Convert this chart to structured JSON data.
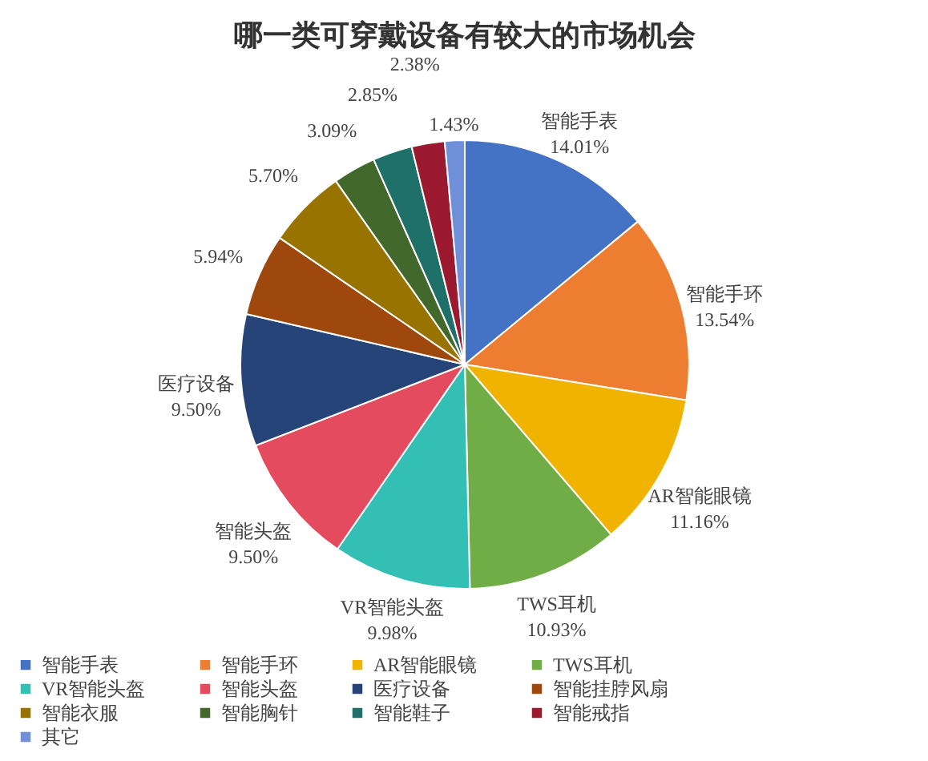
{
  "chart_data": {
    "type": "pie",
    "title": "哪一类可穿戴设备有较大的市场机会",
    "categories": [
      "智能手表",
      "智能手环",
      "AR智能眼镜",
      "TWS耳机",
      "VR智能头盔",
      "智能头盔",
      "医疗设备",
      "智能挂脖风扇",
      "智能衣服",
      "智能胸针",
      "智能鞋子",
      "智能戒指",
      "其它"
    ],
    "values": [
      14.01,
      13.54,
      11.16,
      10.93,
      9.98,
      9.5,
      9.5,
      5.94,
      5.7,
      3.09,
      2.85,
      2.38,
      1.43
    ],
    "colors": [
      "#4472c4",
      "#ed7d31",
      "#f0b400",
      "#70ad47",
      "#33bfb4",
      "#e54b5e",
      "#264478",
      "#9e480e",
      "#997300",
      "#43682b",
      "#1e7068",
      "#9b1a2f",
      "#6f8fd8"
    ],
    "value_labels": [
      "智能手表\n14.01%",
      "智能手环\n13.54%",
      "AR智能眼镜\n11.16%",
      "TWS耳机\n10.93%",
      "VR智能头盔\n9.98%",
      "智能头盔\n9.50%",
      "医疗设备\n9.50%",
      "5.94%",
      "5.70%",
      "3.09%",
      "2.85%",
      "2.38%",
      "1.43%"
    ],
    "legend": "bottom"
  }
}
